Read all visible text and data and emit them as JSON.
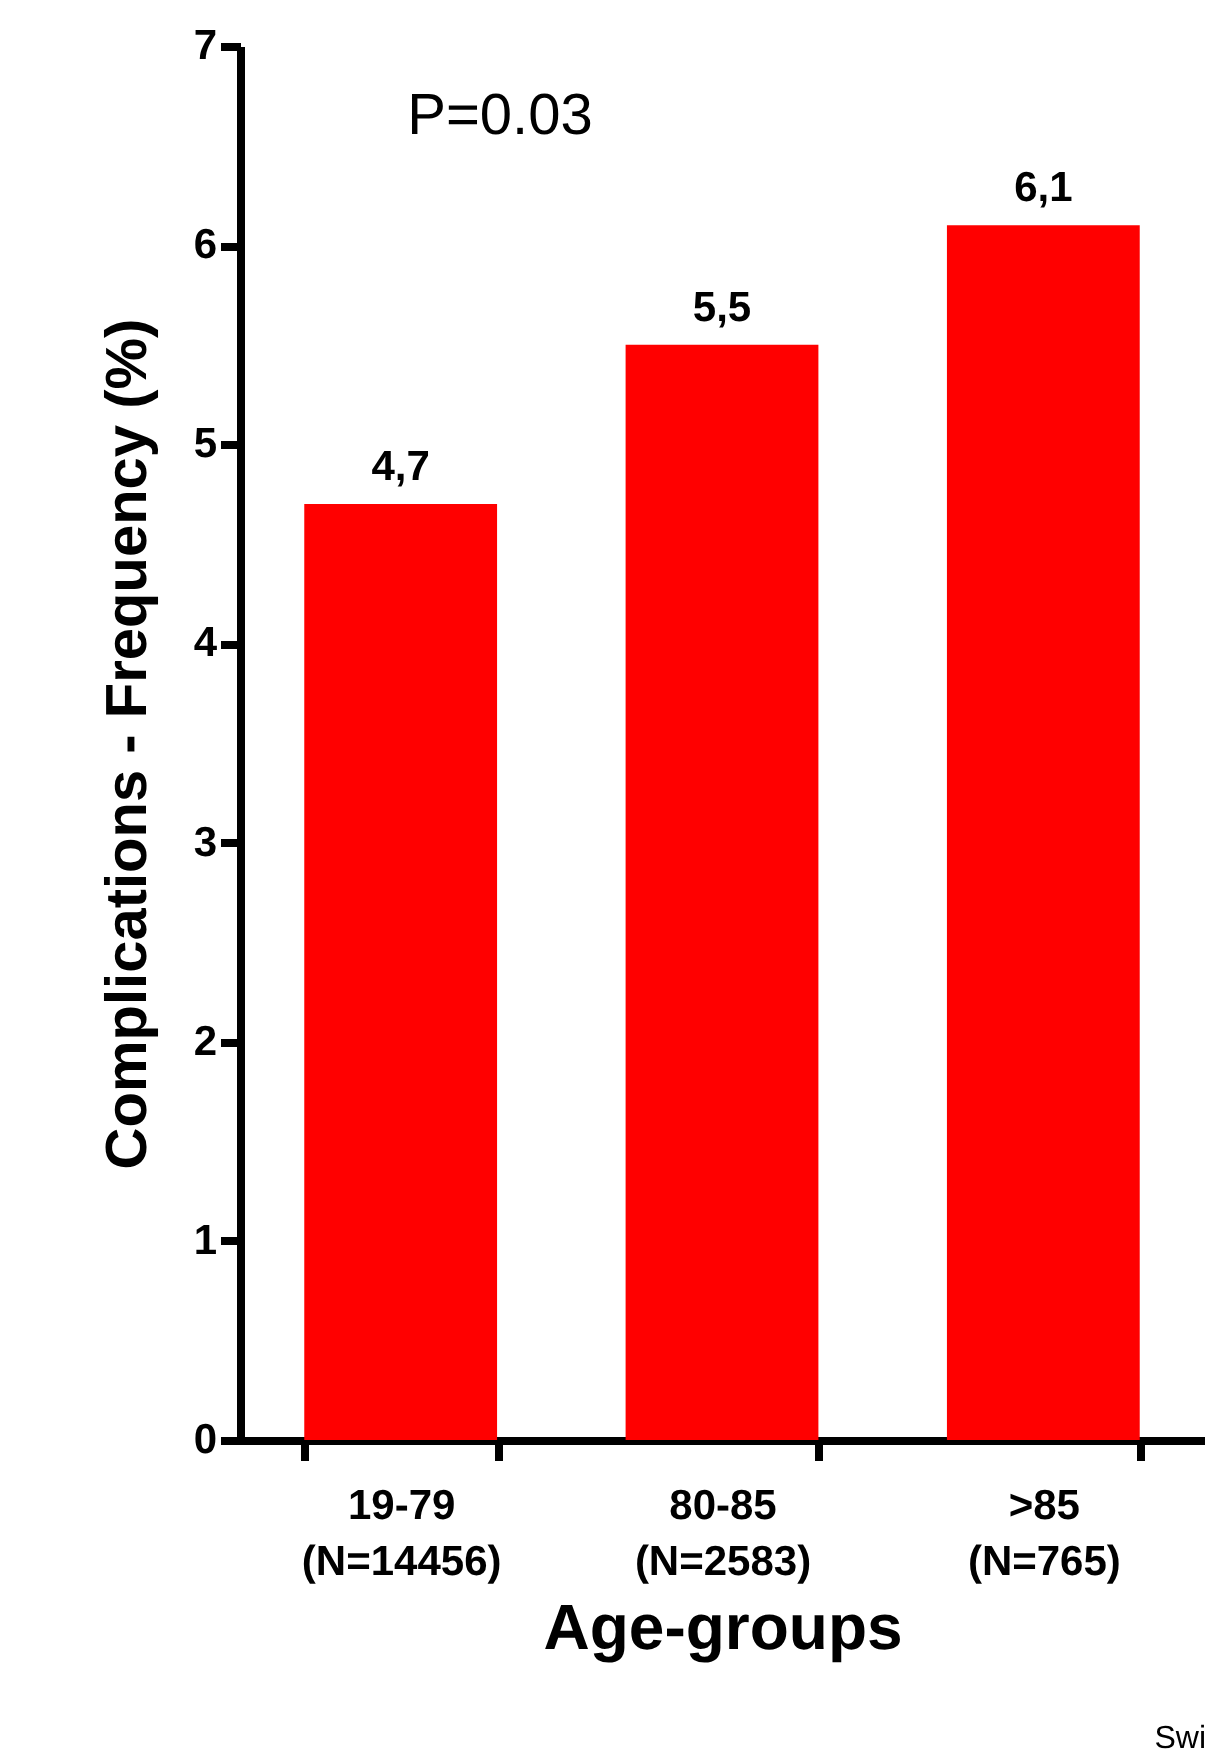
{
  "chart_data": {
    "type": "bar",
    "xlabel": "Age-groups",
    "ylabel": "Complications - Frequency (%)",
    "categories": [
      "19-79 (N=14456)",
      "80-85 (N=2583)",
      ">85 (N=765)"
    ],
    "values": [
      4.7,
      5.5,
      6.1
    ],
    "value_labels": [
      "4,7",
      "5,5",
      "6,1"
    ],
    "color": "#ff0000",
    "ylim": [
      0,
      7
    ],
    "yticks": [
      0,
      1,
      2,
      3,
      4,
      5,
      6,
      7
    ],
    "grid": false,
    "annotations": [
      {
        "text": "P=0.03"
      },
      {
        "text": "Swi"
      }
    ]
  }
}
